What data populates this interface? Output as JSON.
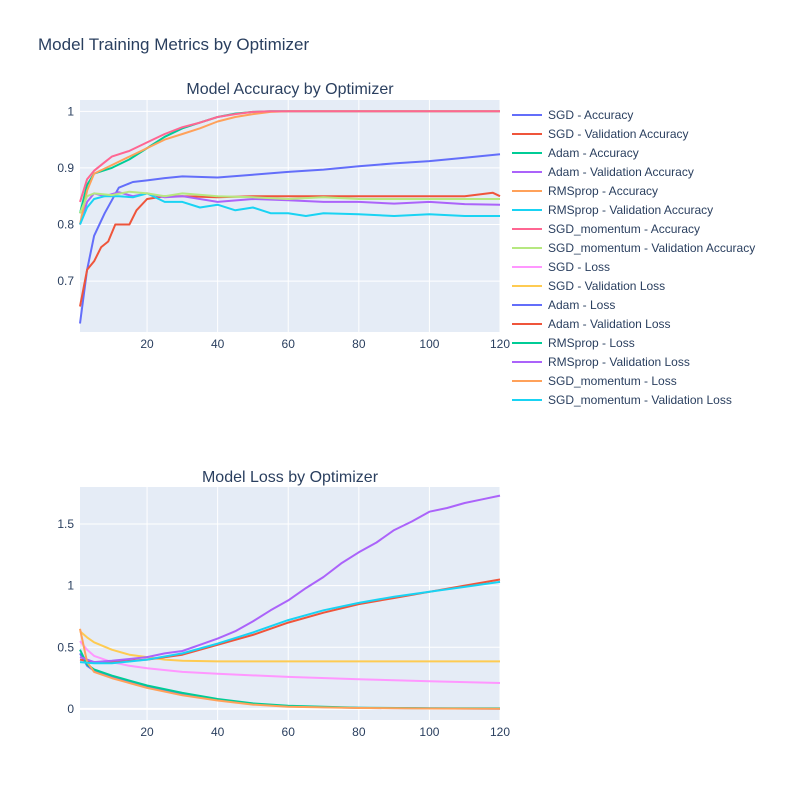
{
  "title": "Model Training Metrics by Optimizer",
  "chart_data": [
    {
      "type": "line",
      "title": "Model Accuracy by Optimizer",
      "xlim": [
        1,
        120
      ],
      "ylim": [
        0.61,
        1.02
      ],
      "x_ticks": [
        20,
        40,
        60,
        80,
        100,
        120
      ],
      "y_ticks": [
        0.7,
        0.8,
        0.9,
        1
      ],
      "grid": true,
      "series": [
        {
          "name": "SGD - Accuracy",
          "color": "#636efa",
          "points": [
            [
              1,
              0.625
            ],
            [
              3,
              0.72
            ],
            [
              5,
              0.78
            ],
            [
              8,
              0.82
            ],
            [
              12,
              0.865
            ],
            [
              16,
              0.875
            ],
            [
              20,
              0.878
            ],
            [
              25,
              0.882
            ],
            [
              30,
              0.885
            ],
            [
              40,
              0.883
            ],
            [
              50,
              0.888
            ],
            [
              60,
              0.893
            ],
            [
              70,
              0.897
            ],
            [
              80,
              0.903
            ],
            [
              90,
              0.908
            ],
            [
              100,
              0.912
            ],
            [
              110,
              0.918
            ],
            [
              120,
              0.924
            ]
          ]
        },
        {
          "name": "SGD - Validation Accuracy",
          "color": "#ef553b",
          "points": [
            [
              1,
              0.655
            ],
            [
              3,
              0.72
            ],
            [
              5,
              0.735
            ],
            [
              7,
              0.76
            ],
            [
              9,
              0.77
            ],
            [
              11,
              0.8
            ],
            [
              15,
              0.8
            ],
            [
              17,
              0.825
            ],
            [
              20,
              0.845
            ],
            [
              25,
              0.85
            ],
            [
              30,
              0.85
            ],
            [
              40,
              0.848
            ],
            [
              50,
              0.85
            ],
            [
              60,
              0.85
            ],
            [
              70,
              0.85
            ],
            [
              80,
              0.85
            ],
            [
              90,
              0.85
            ],
            [
              100,
              0.85
            ],
            [
              110,
              0.85
            ],
            [
              118,
              0.856
            ],
            [
              120,
              0.85
            ]
          ]
        },
        {
          "name": "Adam - Accuracy",
          "color": "#00cc96",
          "points": [
            [
              1,
              0.82
            ],
            [
              3,
              0.87
            ],
            [
              5,
              0.89
            ],
            [
              10,
              0.9
            ],
            [
              15,
              0.915
            ],
            [
              20,
              0.935
            ],
            [
              25,
              0.955
            ],
            [
              30,
              0.97
            ],
            [
              35,
              0.98
            ],
            [
              40,
              0.99
            ],
            [
              45,
              0.996
            ],
            [
              50,
              0.999
            ],
            [
              55,
              1.0
            ],
            [
              60,
              1.0
            ],
            [
              120,
              1.0
            ]
          ]
        },
        {
          "name": "Adam - Validation Accuracy",
          "color": "#ab63fa",
          "points": [
            [
              1,
              0.8
            ],
            [
              3,
              0.84
            ],
            [
              5,
              0.855
            ],
            [
              8,
              0.85
            ],
            [
              12,
              0.857
            ],
            [
              16,
              0.85
            ],
            [
              20,
              0.855
            ],
            [
              25,
              0.848
            ],
            [
              30,
              0.85
            ],
            [
              40,
              0.84
            ],
            [
              50,
              0.845
            ],
            [
              60,
              0.843
            ],
            [
              70,
              0.84
            ],
            [
              80,
              0.84
            ],
            [
              90,
              0.837
            ],
            [
              100,
              0.84
            ],
            [
              110,
              0.836
            ],
            [
              120,
              0.835
            ]
          ]
        },
        {
          "name": "RMSprop - Accuracy",
          "color": "#ffa15a",
          "points": [
            [
              1,
              0.8
            ],
            [
              3,
              0.86
            ],
            [
              5,
              0.89
            ],
            [
              10,
              0.905
            ],
            [
              15,
              0.92
            ],
            [
              20,
              0.935
            ],
            [
              25,
              0.95
            ],
            [
              30,
              0.96
            ],
            [
              35,
              0.97
            ],
            [
              40,
              0.982
            ],
            [
              45,
              0.99
            ],
            [
              50,
              0.995
            ],
            [
              55,
              0.999
            ],
            [
              60,
              1.0
            ],
            [
              120,
              1.0
            ]
          ]
        },
        {
          "name": "RMSprop - Validation Accuracy",
          "color": "#19d3f3",
          "points": [
            [
              1,
              0.8
            ],
            [
              3,
              0.83
            ],
            [
              5,
              0.845
            ],
            [
              8,
              0.85
            ],
            [
              12,
              0.85
            ],
            [
              16,
              0.848
            ],
            [
              20,
              0.855
            ],
            [
              25,
              0.84
            ],
            [
              30,
              0.84
            ],
            [
              35,
              0.83
            ],
            [
              40,
              0.835
            ],
            [
              45,
              0.825
            ],
            [
              50,
              0.83
            ],
            [
              55,
              0.82
            ],
            [
              60,
              0.82
            ],
            [
              65,
              0.815
            ],
            [
              70,
              0.82
            ],
            [
              80,
              0.818
            ],
            [
              90,
              0.815
            ],
            [
              100,
              0.818
            ],
            [
              110,
              0.815
            ],
            [
              120,
              0.815
            ]
          ]
        },
        {
          "name": "SGD_momentum - Accuracy",
          "color": "#ff6692",
          "points": [
            [
              1,
              0.84
            ],
            [
              3,
              0.88
            ],
            [
              5,
              0.895
            ],
            [
              8,
              0.91
            ],
            [
              10,
              0.92
            ],
            [
              15,
              0.93
            ],
            [
              20,
              0.945
            ],
            [
              25,
              0.96
            ],
            [
              30,
              0.972
            ],
            [
              35,
              0.98
            ],
            [
              40,
              0.99
            ],
            [
              45,
              0.995
            ],
            [
              50,
              0.999
            ],
            [
              55,
              1.0
            ],
            [
              120,
              1.0
            ]
          ]
        },
        {
          "name": "SGD_momentum - Validation Accuracy",
          "color": "#b6e880",
          "points": [
            [
              1,
              0.82
            ],
            [
              3,
              0.85
            ],
            [
              5,
              0.855
            ],
            [
              10,
              0.852
            ],
            [
              15,
              0.858
            ],
            [
              20,
              0.855
            ],
            [
              25,
              0.85
            ],
            [
              30,
              0.855
            ],
            [
              40,
              0.85
            ],
            [
              50,
              0.848
            ],
            [
              60,
              0.845
            ],
            [
              70,
              0.848
            ],
            [
              80,
              0.845
            ],
            [
              90,
              0.845
            ],
            [
              100,
              0.845
            ],
            [
              110,
              0.845
            ],
            [
              120,
              0.845
            ]
          ]
        }
      ]
    },
    {
      "type": "line",
      "title": "Model Loss by Optimizer",
      "xlim": [
        1,
        120
      ],
      "ylim": [
        -0.09,
        1.8
      ],
      "x_ticks": [
        20,
        40,
        60,
        80,
        100,
        120
      ],
      "y_ticks": [
        0,
        0.5,
        1,
        1.5
      ],
      "grid": true,
      "series": [
        {
          "name": "SGD - Loss",
          "color": "#ff97ff",
          "points": [
            [
              1,
              0.55
            ],
            [
              3,
              0.48
            ],
            [
              5,
              0.43
            ],
            [
              10,
              0.38
            ],
            [
              15,
              0.35
            ],
            [
              20,
              0.33
            ],
            [
              30,
              0.3
            ],
            [
              40,
              0.285
            ],
            [
              60,
              0.26
            ],
            [
              80,
              0.24
            ],
            [
              100,
              0.225
            ],
            [
              120,
              0.21
            ]
          ]
        },
        {
          "name": "SGD - Validation Loss",
          "color": "#fecb52",
          "points": [
            [
              1,
              0.63
            ],
            [
              3,
              0.58
            ],
            [
              5,
              0.54
            ],
            [
              10,
              0.48
            ],
            [
              15,
              0.44
            ],
            [
              20,
              0.42
            ],
            [
              25,
              0.4
            ],
            [
              30,
              0.39
            ],
            [
              40,
              0.385
            ],
            [
              60,
              0.385
            ],
            [
              80,
              0.385
            ],
            [
              100,
              0.385
            ],
            [
              120,
              0.385
            ]
          ]
        },
        {
          "name": "Adam - Loss",
          "color": "#636efa",
          "points": [
            [
              1,
              0.45
            ],
            [
              3,
              0.35
            ],
            [
              5,
              0.31
            ],
            [
              10,
              0.26
            ],
            [
              15,
              0.22
            ],
            [
              20,
              0.18
            ],
            [
              30,
              0.12
            ],
            [
              40,
              0.075
            ],
            [
              50,
              0.04
            ],
            [
              60,
              0.02
            ],
            [
              80,
              0.008
            ],
            [
              100,
              0.004
            ],
            [
              120,
              0.002
            ]
          ]
        },
        {
          "name": "Adam - Validation Loss",
          "color": "#ef553b",
          "points": [
            [
              1,
              0.4
            ],
            [
              5,
              0.38
            ],
            [
              10,
              0.38
            ],
            [
              20,
              0.4
            ],
            [
              30,
              0.44
            ],
            [
              40,
              0.52
            ],
            [
              50,
              0.6
            ],
            [
              60,
              0.7
            ],
            [
              70,
              0.78
            ],
            [
              80,
              0.85
            ],
            [
              90,
              0.9
            ],
            [
              100,
              0.95
            ],
            [
              110,
              1.0
            ],
            [
              120,
              1.05
            ]
          ]
        },
        {
          "name": "RMSprop - Loss",
          "color": "#00cc96",
          "points": [
            [
              1,
              0.48
            ],
            [
              3,
              0.36
            ],
            [
              5,
              0.32
            ],
            [
              10,
              0.27
            ],
            [
              15,
              0.23
            ],
            [
              20,
              0.19
            ],
            [
              30,
              0.13
            ],
            [
              40,
              0.08
            ],
            [
              50,
              0.045
            ],
            [
              60,
              0.025
            ],
            [
              80,
              0.01
            ],
            [
              100,
              0.006
            ],
            [
              120,
              0.004
            ]
          ]
        },
        {
          "name": "RMSprop - Validation Loss",
          "color": "#ab63fa",
          "points": [
            [
              1,
              0.42
            ],
            [
              5,
              0.38
            ],
            [
              10,
              0.39
            ],
            [
              20,
              0.42
            ],
            [
              25,
              0.45
            ],
            [
              30,
              0.47
            ],
            [
              35,
              0.52
            ],
            [
              40,
              0.57
            ],
            [
              45,
              0.63
            ],
            [
              50,
              0.71
            ],
            [
              55,
              0.8
            ],
            [
              60,
              0.88
            ],
            [
              65,
              0.98
            ],
            [
              70,
              1.07
            ],
            [
              75,
              1.18
            ],
            [
              80,
              1.27
            ],
            [
              85,
              1.35
            ],
            [
              90,
              1.45
            ],
            [
              95,
              1.52
            ],
            [
              100,
              1.6
            ],
            [
              105,
              1.63
            ],
            [
              110,
              1.67
            ],
            [
              115,
              1.7
            ],
            [
              120,
              1.73
            ]
          ]
        },
        {
          "name": "SGD_momentum - Loss",
          "color": "#ffa15a",
          "points": [
            [
              1,
              0.65
            ],
            [
              3,
              0.38
            ],
            [
              5,
              0.3
            ],
            [
              10,
              0.25
            ],
            [
              15,
              0.21
            ],
            [
              20,
              0.17
            ],
            [
              30,
              0.11
            ],
            [
              40,
              0.068
            ],
            [
              50,
              0.035
            ],
            [
              60,
              0.018
            ],
            [
              80,
              0.007
            ],
            [
              100,
              0.003
            ],
            [
              120,
              0.001
            ]
          ]
        },
        {
          "name": "SGD_momentum - Validation Loss",
          "color": "#19d3f3",
          "points": [
            [
              1,
              0.38
            ],
            [
              5,
              0.37
            ],
            [
              10,
              0.37
            ],
            [
              20,
              0.4
            ],
            [
              30,
              0.45
            ],
            [
              40,
              0.53
            ],
            [
              50,
              0.62
            ],
            [
              60,
              0.72
            ],
            [
              70,
              0.8
            ],
            [
              80,
              0.86
            ],
            [
              90,
              0.91
            ],
            [
              100,
              0.95
            ],
            [
              110,
              0.99
            ],
            [
              120,
              1.03
            ]
          ]
        }
      ]
    }
  ]
}
